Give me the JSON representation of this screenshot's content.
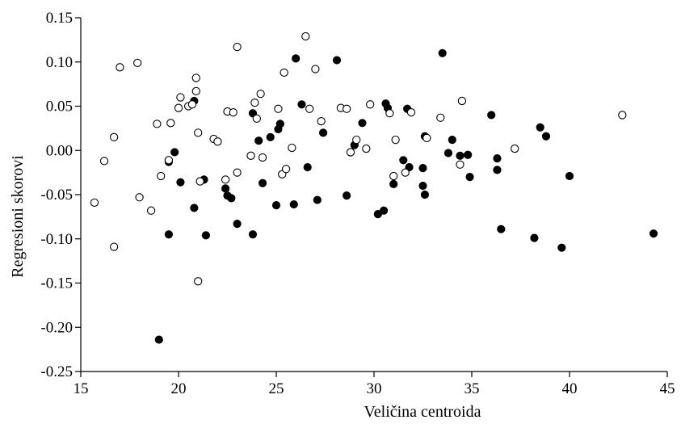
{
  "chart_data": {
    "type": "scatter",
    "xlabel": "Veličina centroida",
    "ylabel": "Regresioni skorovi",
    "xlim": [
      15,
      45
    ],
    "ylim": [
      -0.25,
      0.15
    ],
    "x_ticks": [
      15,
      20,
      25,
      30,
      35,
      40,
      45
    ],
    "y_ticks": [
      -0.25,
      -0.2,
      -0.15,
      -0.1,
      -0.05,
      0,
      0.05,
      0.1,
      0.15
    ],
    "x_tick_labels": [
      "15",
      "20",
      "25",
      "30",
      "35",
      "40",
      "45"
    ],
    "y_tick_labels": [
      "-0.25",
      "-0.20",
      "-0.15",
      "-0.10",
      "-0.05",
      "0.00",
      "0.05",
      "0.10",
      "0.15"
    ],
    "grid": false,
    "series": [
      {
        "marker": "filled-circle",
        "color": "#000000",
        "points": [
          [
            19.0,
            -0.214
          ],
          [
            19.5,
            -0.095
          ],
          [
            19.5,
            -0.013
          ],
          [
            19.8,
            -0.002
          ],
          [
            20.1,
            -0.036
          ],
          [
            20.8,
            0.056
          ],
          [
            20.8,
            -0.065
          ],
          [
            21.3,
            -0.033
          ],
          [
            21.4,
            -0.096
          ],
          [
            22.4,
            -0.043
          ],
          [
            22.5,
            -0.051
          ],
          [
            22.7,
            -0.054
          ],
          [
            23.0,
            -0.083
          ],
          [
            23.8,
            -0.095
          ],
          [
            23.8,
            0.042
          ],
          [
            24.1,
            0.011
          ],
          [
            24.3,
            -0.037
          ],
          [
            24.7,
            0.015
          ],
          [
            25.0,
            -0.062
          ],
          [
            25.1,
            0.024
          ],
          [
            25.2,
            0.03
          ],
          [
            25.9,
            -0.061
          ],
          [
            26.0,
            0.104
          ],
          [
            26.3,
            0.052
          ],
          [
            26.6,
            -0.019
          ],
          [
            27.1,
            -0.056
          ],
          [
            27.4,
            0.02
          ],
          [
            28.1,
            0.102
          ],
          [
            28.6,
            -0.051
          ],
          [
            29.0,
            0.006
          ],
          [
            29.4,
            0.031
          ],
          [
            30.2,
            -0.072
          ],
          [
            30.5,
            -0.068
          ],
          [
            30.6,
            0.053
          ],
          [
            30.7,
            0.048
          ],
          [
            31.0,
            -0.038
          ],
          [
            31.5,
            -0.011
          ],
          [
            31.7,
            0.047
          ],
          [
            31.8,
            -0.019
          ],
          [
            32.5,
            -0.02
          ],
          [
            32.5,
            -0.04
          ],
          [
            32.6,
            -0.05
          ],
          [
            32.6,
            0.016
          ],
          [
            33.5,
            0.11
          ],
          [
            33.8,
            -0.003
          ],
          [
            34.0,
            0.012
          ],
          [
            34.4,
            -0.006
          ],
          [
            34.8,
            -0.005
          ],
          [
            34.9,
            -0.03
          ],
          [
            36.0,
            0.04
          ],
          [
            36.3,
            -0.009
          ],
          [
            36.3,
            -0.022
          ],
          [
            36.5,
            -0.089
          ],
          [
            38.2,
            -0.099
          ],
          [
            38.5,
            0.026
          ],
          [
            38.8,
            0.016
          ],
          [
            39.6,
            -0.11
          ],
          [
            40.0,
            -0.029
          ],
          [
            44.3,
            -0.094
          ]
        ]
      },
      {
        "marker": "open-circle",
        "color": "#000000",
        "points": [
          [
            15.7,
            -0.059
          ],
          [
            16.2,
            -0.012
          ],
          [
            16.7,
            0.015
          ],
          [
            16.7,
            -0.109
          ],
          [
            17.0,
            0.094
          ],
          [
            17.9,
            0.099
          ],
          [
            18.0,
            -0.053
          ],
          [
            18.6,
            -0.068
          ],
          [
            18.9,
            0.03
          ],
          [
            19.1,
            -0.029
          ],
          [
            19.5,
            -0.011
          ],
          [
            19.6,
            0.031
          ],
          [
            20.0,
            0.048
          ],
          [
            20.1,
            0.06
          ],
          [
            20.5,
            0.05
          ],
          [
            20.7,
            0.052
          ],
          [
            20.9,
            0.082
          ],
          [
            20.9,
            0.067
          ],
          [
            21.0,
            0.02
          ],
          [
            21.0,
            -0.148
          ],
          [
            21.1,
            -0.035
          ],
          [
            21.8,
            0.013
          ],
          [
            22.0,
            0.01
          ],
          [
            22.4,
            -0.033
          ],
          [
            22.5,
            0.044
          ],
          [
            22.8,
            0.043
          ],
          [
            23.0,
            0.117
          ],
          [
            23.0,
            -0.025
          ],
          [
            23.7,
            -0.006
          ],
          [
            23.9,
            0.054
          ],
          [
            24.0,
            0.036
          ],
          [
            24.2,
            0.064
          ],
          [
            24.3,
            -0.008
          ],
          [
            25.1,
            0.047
          ],
          [
            25.3,
            -0.027
          ],
          [
            25.4,
            0.088
          ],
          [
            25.5,
            -0.021
          ],
          [
            25.8,
            0.003
          ],
          [
            26.5,
            0.129
          ],
          [
            26.7,
            0.047
          ],
          [
            27.0,
            0.092
          ],
          [
            27.3,
            0.033
          ],
          [
            28.3,
            0.048
          ],
          [
            28.6,
            0.047
          ],
          [
            28.8,
            -0.002
          ],
          [
            29.1,
            0.012
          ],
          [
            29.6,
            0.002
          ],
          [
            29.8,
            0.052
          ],
          [
            30.8,
            0.042
          ],
          [
            31.0,
            -0.029
          ],
          [
            31.1,
            0.012
          ],
          [
            31.6,
            -0.025
          ],
          [
            31.9,
            0.043
          ],
          [
            32.7,
            0.014
          ],
          [
            33.4,
            0.037
          ],
          [
            34.4,
            -0.016
          ],
          [
            34.5,
            0.056
          ],
          [
            37.2,
            0.002
          ],
          [
            42.7,
            0.04
          ]
        ]
      }
    ]
  }
}
